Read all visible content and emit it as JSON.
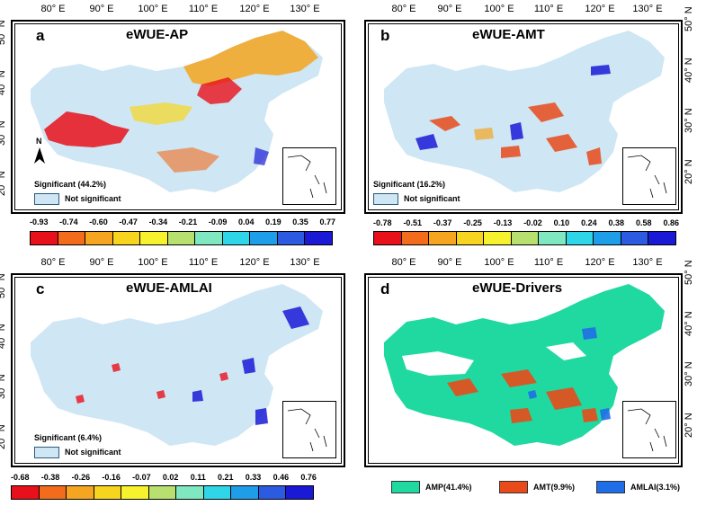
{
  "lon_ticks": [
    "80° E",
    "90° E",
    "100° E",
    "110° E",
    "120° E",
    "130° E"
  ],
  "lat_ticks": [
    "50° N",
    "40° N",
    "30° N",
    "20° N"
  ],
  "panels": [
    {
      "letter": "a",
      "title": "eWUE-AP",
      "significant": "Significant (44.2%)",
      "not_significant": "Not significant",
      "palette": [
        "#e8101a",
        "#f26c1c",
        "#f5a51f",
        "#f7d51e",
        "#f6f22e",
        "#b8e06f",
        "#7fe8c1",
        "#2fd6e8",
        "#1e9ee8",
        "#2c5ae0",
        "#1a1ad6"
      ],
      "colorbar_labels": [
        "-0.93",
        "-0.74",
        "-0.60",
        "-0.47",
        "-0.34",
        "-0.21",
        "-0.09",
        "0.04",
        "0.19",
        "0.35",
        "0.77"
      ],
      "north_label": "N"
    },
    {
      "letter": "b",
      "title": "eWUE-AMT",
      "significant": "Significant (16.2%)",
      "not_significant": "Not significant",
      "palette": [
        "#e8101a",
        "#f26c1c",
        "#f5a51f",
        "#f7d51e",
        "#f6f22e",
        "#b8e06f",
        "#7fe8c1",
        "#2fd6e8",
        "#1e9ee8",
        "#2c5ae0",
        "#1a1ad6"
      ],
      "colorbar_labels": [
        "-0.78",
        "-0.51",
        "-0.37",
        "-0.25",
        "-0.13",
        "-0.02",
        "0.10",
        "0.24",
        "0.38",
        "0.58",
        "0.86"
      ]
    },
    {
      "letter": "c",
      "title": "eWUE-AMLAI",
      "significant": "Significant (6.4%)",
      "not_significant": "Not significant",
      "palette": [
        "#e8101a",
        "#f26c1c",
        "#f5a51f",
        "#f7d51e",
        "#f6f22e",
        "#b8e06f",
        "#7fe8c1",
        "#2fd6e8",
        "#1e9ee8",
        "#2c5ae0",
        "#1a1ad6"
      ],
      "colorbar_labels": [
        "-0.68",
        "-0.38",
        "-0.26",
        "-0.16",
        "-0.07",
        "0.02",
        "0.11",
        "0.21",
        "0.33",
        "0.46",
        "0.76"
      ]
    },
    {
      "letter": "d",
      "title": "eWUE-Drivers",
      "legend": [
        {
          "label": "AMP(41.4%)",
          "color": "#1fd9a0"
        },
        {
          "label": "AMT(9.9%)",
          "color": "#e84a1a"
        },
        {
          "label": "AMLAI(3.1%)",
          "color": "#1f6ee8"
        }
      ]
    }
  ],
  "colors": {
    "not_significant": "#cfe6f4",
    "map_background": "#ffffff",
    "border": "#000000"
  }
}
